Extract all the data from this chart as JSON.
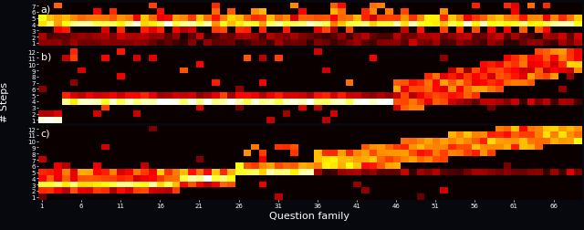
{
  "n_families": 69,
  "panels": [
    {
      "label": "a)",
      "max_steps": 7,
      "ytick_labels": [
        "1",
        "2",
        "3",
        "4",
        "5",
        "6",
        "7"
      ]
    },
    {
      "label": "b)",
      "max_steps": 12,
      "ytick_labels": [
        "1",
        "2",
        "3",
        "4",
        "5",
        "6",
        "7",
        "8",
        "9",
        "10",
        "11",
        "12"
      ]
    },
    {
      "label": "c)",
      "max_steps": 12,
      "ytick_labels": [
        "1",
        "2",
        "3",
        "4",
        "5",
        "6",
        "7",
        "8",
        "9",
        "10",
        "11",
        "12"
      ]
    }
  ],
  "colormap": "hot",
  "background_color": "#07080e",
  "xlabel": "Question family",
  "ylabel": "# Steps",
  "label_fontsize": 8,
  "tick_fontsize": 5,
  "panel_label_fontsize": 8
}
